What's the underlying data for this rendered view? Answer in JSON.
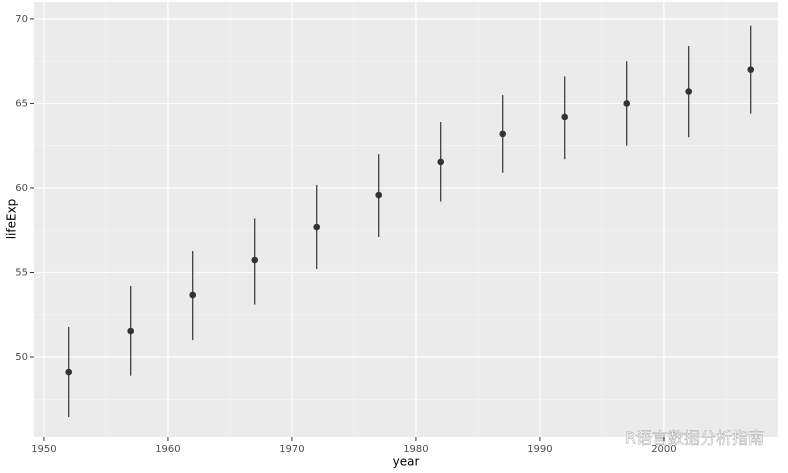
{
  "chart_data": {
    "type": "pointrange",
    "x_label": "year",
    "y_label": "lifeExp",
    "x": [
      1952,
      1957,
      1962,
      1967,
      1972,
      1977,
      1982,
      1987,
      1992,
      1997,
      2002,
      2007
    ],
    "values": [
      49.11,
      51.54,
      53.67,
      55.74,
      57.69,
      59.58,
      61.54,
      63.2,
      64.2,
      65.0,
      65.7,
      67.0
    ],
    "lower": [
      46.45,
      48.9,
      51.0,
      53.1,
      55.2,
      57.1,
      59.2,
      60.9,
      61.7,
      62.5,
      63.0,
      64.4
    ],
    "upper": [
      51.78,
      54.2,
      56.27,
      58.2,
      60.18,
      62.0,
      63.9,
      65.5,
      66.6,
      67.5,
      68.4,
      69.6
    ],
    "color": "#333333",
    "xlim": [
      1949.2,
      2009.2
    ],
    "xticks": [
      1950,
      1960,
      1970,
      1980,
      1990,
      2000
    ],
    "ylim": [
      45.27,
      71.0
    ],
    "yticks": [
      50,
      55,
      60,
      65,
      70
    ],
    "grid": true,
    "watermark": "R语言数据分析指南"
  }
}
